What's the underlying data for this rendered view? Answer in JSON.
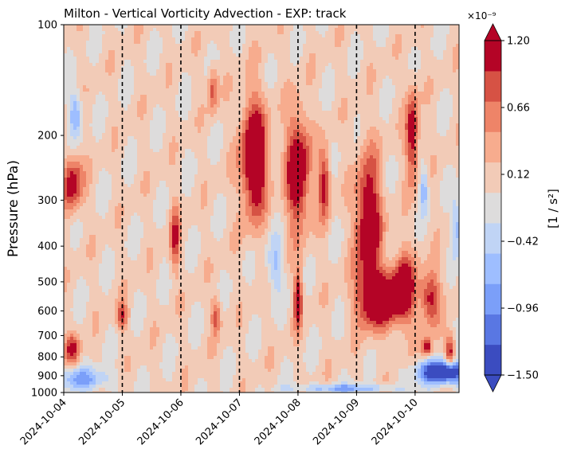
{
  "chart_data": {
    "type": "heatmap",
    "title": "Milton - Vertical Vorticity Advection - EXP: track",
    "ylabel": "Pressure (hPa)",
    "y_scale": "log",
    "y_inverted": true,
    "ylim": [
      1000,
      100
    ],
    "y_ticks": [
      100,
      200,
      300,
      400,
      500,
      600,
      700,
      800,
      900,
      1000
    ],
    "x_ticks": [
      "2024-10-04",
      "2024-10-05",
      "2024-10-06",
      "2024-10-07",
      "2024-10-08",
      "2024-10-09",
      "2024-10-10"
    ],
    "x_range_days": [
      0,
      6.75
    ],
    "vertical_dashed_lines": [
      "2024-10-05",
      "2024-10-06",
      "2024-10-07",
      "2024-10-08",
      "2024-10-09",
      "2024-10-10"
    ],
    "colorbar": {
      "label": "[1 / s²]",
      "multiplier": "×10⁻⁹",
      "ticks": [
        "1.20",
        "0.66",
        "0.12",
        "−0.42",
        "−0.96",
        "−1.50"
      ],
      "levels": [
        -1.5,
        -1.23,
        -0.96,
        -0.69,
        -0.42,
        -0.15,
        0.12,
        0.39,
        0.66,
        0.93,
        1.2
      ],
      "colors": [
        "#3b4cc0",
        "#5977e3",
        "#7b9ff9",
        "#9ebeff",
        "#c0d4f5",
        "#dddcdc",
        "#f2cbb7",
        "#f7ac8e",
        "#ee8468",
        "#d65244",
        "#b40426"
      ],
      "under_color": "#3b4cc0",
      "over_color": "#b40426",
      "extend": "both"
    },
    "field": {
      "note": "approximate filled-contour field in units of 1e-9 s^-2",
      "background_value": 0.2,
      "features": [
        {
          "day": 0.15,
          "p": 270,
          "amp": 1.3,
          "sd": 0.12,
          "sp": 0.12
        },
        {
          "day": 0.15,
          "p": 760,
          "amp": 1.1,
          "sd": 0.09,
          "sp": 0.06
        },
        {
          "day": 0.3,
          "p": 920,
          "amp": -0.9,
          "sd": 0.35,
          "sp": 0.05
        },
        {
          "day": 0.2,
          "p": 175,
          "amp": -0.9,
          "sd": 0.08,
          "sp": 0.1
        },
        {
          "day": 1.0,
          "p": 620,
          "amp": 1.0,
          "sd": 0.07,
          "sp": 0.06
        },
        {
          "day": 1.9,
          "p": 380,
          "amp": 1.0,
          "sd": 0.06,
          "sp": 0.14
        },
        {
          "day": 2.6,
          "p": 620,
          "amp": 0.9,
          "sd": 0.06,
          "sp": 0.08
        },
        {
          "day": 2.55,
          "p": 150,
          "amp": 0.9,
          "sd": 0.06,
          "sp": 0.1
        },
        {
          "day": 3.25,
          "p": 230,
          "amp": 1.8,
          "sd": 0.16,
          "sp": 0.25
        },
        {
          "day": 3.6,
          "p": 450,
          "amp": -0.7,
          "sd": 0.1,
          "sp": 0.12
        },
        {
          "day": 4.0,
          "p": 250,
          "amp": 1.6,
          "sd": 0.14,
          "sp": 0.25
        },
        {
          "day": 4.0,
          "p": 560,
          "amp": 1.4,
          "sd": 0.05,
          "sp": 0.12
        },
        {
          "day": 4.45,
          "p": 270,
          "amp": 1.2,
          "sd": 0.07,
          "sp": 0.15
        },
        {
          "day": 5.2,
          "p": 350,
          "amp": 1.6,
          "sd": 0.15,
          "sp": 0.3
        },
        {
          "day": 5.4,
          "p": 560,
          "amp": 1.6,
          "sd": 0.25,
          "sp": 0.12
        },
        {
          "day": 5.8,
          "p": 520,
          "amp": 1.4,
          "sd": 0.14,
          "sp": 0.15
        },
        {
          "day": 5.95,
          "p": 200,
          "amp": 1.3,
          "sd": 0.08,
          "sp": 0.2
        },
        {
          "day": 6.25,
          "p": 550,
          "amp": 1.2,
          "sd": 0.12,
          "sp": 0.12
        },
        {
          "day": 6.5,
          "p": 880,
          "amp": -2.2,
          "sd": 0.3,
          "sp": 0.05
        },
        {
          "day": 6.2,
          "p": 750,
          "amp": 1.3,
          "sd": 0.06,
          "sp": 0.04
        },
        {
          "day": 6.6,
          "p": 780,
          "amp": 1.3,
          "sd": 0.06,
          "sp": 0.08
        },
        {
          "day": 6.15,
          "p": 280,
          "amp": -0.8,
          "sd": 0.05,
          "sp": 0.1
        },
        {
          "day": 6.7,
          "p": 350,
          "amp": -0.9,
          "sd": 0.04,
          "sp": 0.12
        },
        {
          "day": 4.8,
          "p": 975,
          "amp": -0.9,
          "sd": 0.6,
          "sp": 0.02
        }
      ]
    }
  }
}
